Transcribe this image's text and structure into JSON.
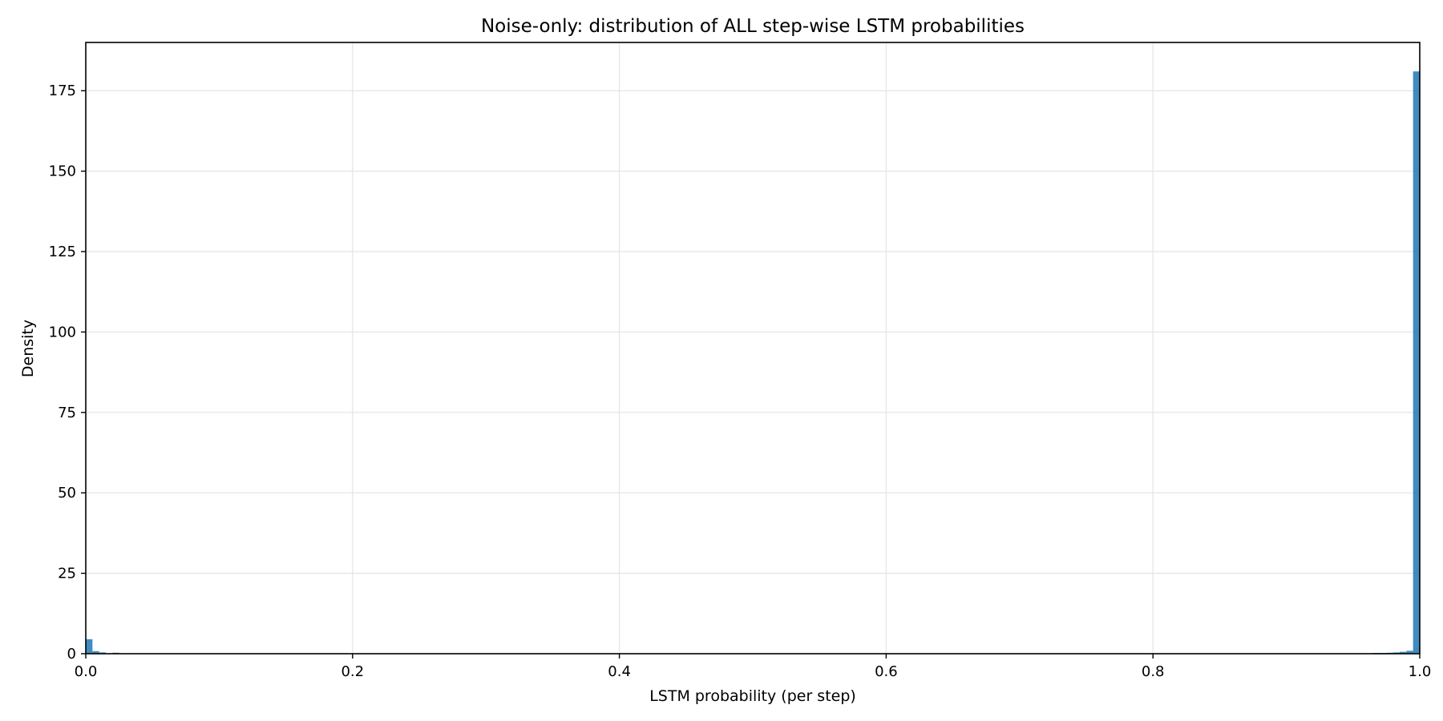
{
  "chart_data": {
    "type": "bar",
    "title": "Noise-only: distribution of ALL step-wise LSTM probabilities",
    "xlabel": "LSTM probability (per step)",
    "ylabel": "Density",
    "xlim": [
      0.0,
      1.0
    ],
    "ylim": [
      0,
      190
    ],
    "x_ticks": [
      "0.0",
      "0.2",
      "0.4",
      "0.6",
      "0.8",
      "1.0"
    ],
    "y_ticks": [
      "0",
      "25",
      "50",
      "75",
      "100",
      "125",
      "150",
      "175"
    ],
    "grid": true,
    "bar_color": "#1f77b4",
    "bins": [
      {
        "x0": 0.0,
        "x1": 0.005,
        "value": 4.5
      },
      {
        "x0": 0.005,
        "x1": 0.01,
        "value": 0.8
      },
      {
        "x0": 0.01,
        "x1": 0.015,
        "value": 0.4
      },
      {
        "x0": 0.02,
        "x1": 0.025,
        "value": 0.3
      },
      {
        "x0": 0.965,
        "x1": 0.97,
        "value": 0.2
      },
      {
        "x0": 0.97,
        "x1": 0.975,
        "value": 0.2
      },
      {
        "x0": 0.975,
        "x1": 0.98,
        "value": 0.3
      },
      {
        "x0": 0.98,
        "x1": 0.985,
        "value": 0.4
      },
      {
        "x0": 0.985,
        "x1": 0.99,
        "value": 0.6
      },
      {
        "x0": 0.99,
        "x1": 0.995,
        "value": 0.9
      },
      {
        "x0": 0.995,
        "x1": 1.0,
        "value": 181
      }
    ]
  }
}
